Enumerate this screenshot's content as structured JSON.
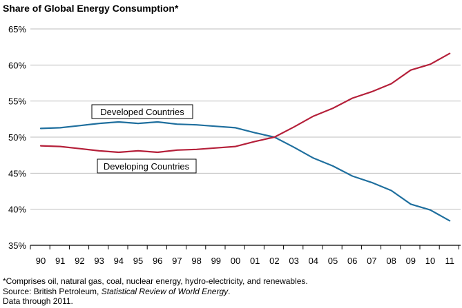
{
  "chart_data": {
    "type": "line",
    "title": "Share of Global Energy Consumption*",
    "xlabel": "",
    "ylabel": "",
    "categories": [
      "90",
      "91",
      "92",
      "93",
      "94",
      "95",
      "96",
      "97",
      "98",
      "99",
      "00",
      "01",
      "02",
      "03",
      "04",
      "05",
      "06",
      "07",
      "08",
      "09",
      "10",
      "11"
    ],
    "ylim": [
      35,
      65
    ],
    "yticks": [
      35,
      40,
      45,
      50,
      55,
      60,
      65
    ],
    "ytick_labels": [
      "35%",
      "40%",
      "45%",
      "50%",
      "55%",
      "60%",
      "65%"
    ],
    "grid": "horizontal",
    "series": [
      {
        "name": "Developed Countries",
        "color": "#1f6f9e",
        "values": [
          51.2,
          51.3,
          51.6,
          51.9,
          52.1,
          51.9,
          52.1,
          51.8,
          51.7,
          51.5,
          51.3,
          50.6,
          50.0,
          48.6,
          47.1,
          46.0,
          44.6,
          43.7,
          42.6,
          40.7,
          39.9,
          38.4
        ]
      },
      {
        "name": "Developing Countries",
        "color": "#b5203a",
        "values": [
          48.8,
          48.7,
          48.4,
          48.1,
          47.9,
          48.1,
          47.9,
          48.2,
          48.3,
          48.5,
          48.7,
          49.4,
          50.0,
          51.4,
          52.9,
          54.0,
          55.4,
          56.3,
          57.4,
          59.3,
          60.1,
          61.6
        ]
      }
    ]
  },
  "footnotes": {
    "line1": "*Comprises oil, natural gas, coal, nuclear energy, hydro-electricity, and renewables.",
    "source_prefix": "Source: British Petroleum, ",
    "source_title": "Statistical Review of World Energy",
    "source_suffix": ".",
    "line3": "Data through 2011."
  }
}
